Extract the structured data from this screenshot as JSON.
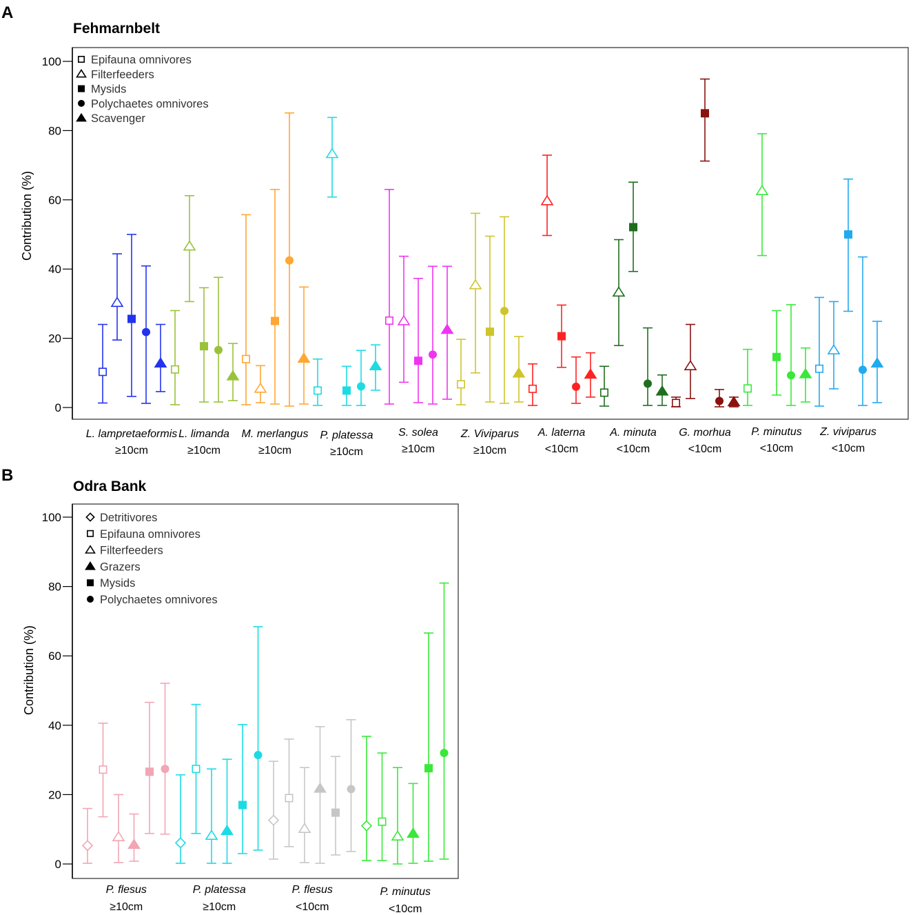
{
  "chart_data": [
    {
      "type": "scatter",
      "panel_letter": "A",
      "title": "Fehmarnbelt",
      "ylabel": "Contribution (%)",
      "xlabel": "",
      "ylim": [
        0,
        100
      ],
      "yticks": [
        "0",
        "20",
        "40",
        "60",
        "80",
        "100"
      ],
      "legend_position": "top-left",
      "legend": [
        {
          "name": "Epifauna omnivores",
          "marker": "square-open"
        },
        {
          "name": "Filterfeeders",
          "marker": "triangle-open"
        },
        {
          "name": "Mysids",
          "marker": "square-filled"
        },
        {
          "name": "Polychaetes omnivores",
          "marker": "circle-filled"
        },
        {
          "name": "Scavenger",
          "marker": "triangle-filled"
        }
      ],
      "categories": [
        {
          "name": "L. lampretaeformis",
          "size": "≥10cm",
          "color": "#2233ee",
          "points": [
            {
              "group": "Epifauna omnivores",
              "marker": "square-open",
              "value": 10.3,
              "low": 1.3,
              "high": 24.0
            },
            {
              "group": "Filterfeeders",
              "marker": "triangle-open",
              "value": 30.3,
              "low": 19.5,
              "high": 44.4
            },
            {
              "group": "Mysids",
              "marker": "square-filled",
              "value": 25.6,
              "low": 3.2,
              "high": 50.0
            },
            {
              "group": "Polychaetes omnivores",
              "marker": "circle-filled",
              "value": 21.8,
              "low": 1.2,
              "high": 40.9
            },
            {
              "group": "Scavenger",
              "marker": "triangle-filled",
              "value": 12.8,
              "low": 4.6,
              "high": 24.0
            }
          ]
        },
        {
          "name": "L. limanda",
          "size": "≥10cm",
          "color": "#99c23a",
          "points": [
            {
              "group": "Epifauna omnivores",
              "marker": "square-open",
              "value": 11.0,
              "low": 0.8,
              "high": 28.0
            },
            {
              "group": "Filterfeeders",
              "marker": "triangle-open",
              "value": 46.6,
              "low": 30.6,
              "high": 61.2
            },
            {
              "group": "Mysids",
              "marker": "square-filled",
              "value": 17.7,
              "low": 1.6,
              "high": 34.6
            },
            {
              "group": "Polychaetes omnivores",
              "marker": "circle-filled",
              "value": 16.6,
              "low": 1.6,
              "high": 37.6
            },
            {
              "group": "Scavenger",
              "marker": "triangle-filled",
              "value": 9.1,
              "low": 2.0,
              "high": 18.5
            }
          ]
        },
        {
          "name": "M. merlangus",
          "size": "≥10cm",
          "color": "#ffa733",
          "points": [
            {
              "group": "Epifauna omnivores",
              "marker": "square-open",
              "value": 14.0,
              "low": 0.8,
              "high": 55.7
            },
            {
              "group": "Filterfeeders",
              "marker": "triangle-open",
              "value": 5.5,
              "low": 1.4,
              "high": 12.1
            },
            {
              "group": "Mysids",
              "marker": "square-filled",
              "value": 25.0,
              "low": 1.0,
              "high": 63.0
            },
            {
              "group": "Polychaetes omnivores",
              "marker": "circle-filled",
              "value": 42.5,
              "low": 0.4,
              "high": 85.1
            },
            {
              "group": "Scavenger",
              "marker": "triangle-filled",
              "value": 14.2,
              "low": 1.0,
              "high": 34.8
            }
          ]
        },
        {
          "name": "P. platessa",
          "size": "≥10cm",
          "color": "#1ddbe3",
          "points": [
            {
              "group": "Epifauna omnivores",
              "marker": "square-open",
              "value": 4.9,
              "low": 0.6,
              "high": 14.0
            },
            {
              "group": "Filterfeeders",
              "marker": "triangle-open",
              "value": 73.3,
              "low": 60.8,
              "high": 83.8
            },
            {
              "group": "Mysids",
              "marker": "square-filled",
              "value": 4.9,
              "low": 0.6,
              "high": 11.9
            },
            {
              "group": "Polychaetes omnivores",
              "marker": "circle-filled",
              "value": 6.1,
              "low": 0.6,
              "high": 16.5
            },
            {
              "group": "Scavenger",
              "marker": "triangle-filled",
              "value": 12.0,
              "low": 5.0,
              "high": 18.1
            }
          ]
        },
        {
          "name": "S. solea",
          "size": "≥10cm",
          "color": "#f035f0",
          "points": [
            {
              "group": "Epifauna omnivores",
              "marker": "square-open",
              "value": 25.1,
              "low": 1.0,
              "high": 63.0
            },
            {
              "group": "Filterfeeders",
              "marker": "triangle-open",
              "value": 25.0,
              "low": 7.3,
              "high": 43.7
            },
            {
              "group": "Mysids",
              "marker": "square-filled",
              "value": 13.5,
              "low": 1.4,
              "high": 37.3
            },
            {
              "group": "Polychaetes omnivores",
              "marker": "circle-filled",
              "value": 15.3,
              "low": 1.0,
              "high": 40.8
            },
            {
              "group": "Scavenger",
              "marker": "triangle-filled",
              "value": 22.5,
              "low": 2.4,
              "high": 40.8
            }
          ]
        },
        {
          "name": "Z. Viviparus",
          "size": "≥10cm",
          "color": "#cfc42a",
          "points": [
            {
              "group": "Epifauna omnivores",
              "marker": "square-open",
              "value": 6.7,
              "low": 0.8,
              "high": 19.7
            },
            {
              "group": "Filterfeeders",
              "marker": "triangle-open",
              "value": 35.4,
              "low": 10.0,
              "high": 56.1
            },
            {
              "group": "Mysids",
              "marker": "square-filled",
              "value": 21.9,
              "low": 1.6,
              "high": 49.5
            },
            {
              "group": "Polychaetes omnivores",
              "marker": "circle-filled",
              "value": 27.9,
              "low": 1.2,
              "high": 55.1
            },
            {
              "group": "Scavenger",
              "marker": "triangle-filled",
              "value": 9.9,
              "low": 1.6,
              "high": 20.5
            }
          ]
        },
        {
          "name": "A. laterna",
          "size": "<10cm",
          "color": "#ff2222",
          "points": [
            {
              "group": "Epifauna omnivores",
              "marker": "square-open",
              "value": 5.4,
              "low": 0.6,
              "high": 12.6
            },
            {
              "group": "Filterfeeders",
              "marker": "triangle-open",
              "value": 59.7,
              "low": 49.7,
              "high": 72.9
            },
            {
              "group": "Mysids",
              "marker": "square-filled",
              "value": 20.6,
              "low": 11.6,
              "high": 29.6
            },
            {
              "group": "Polychaetes omnivores",
              "marker": "circle-filled",
              "value": 6.0,
              "low": 1.2,
              "high": 14.6
            },
            {
              "group": "Scavenger",
              "marker": "triangle-filled",
              "value": 9.6,
              "low": 3.0,
              "high": 15.8
            }
          ]
        },
        {
          "name": "A. minuta",
          "size": "<10cm",
          "color": "#1f6e1f",
          "points": [
            {
              "group": "Epifauna omnivores",
              "marker": "square-open",
              "value": 4.3,
              "low": 0.4,
              "high": 11.9
            },
            {
              "group": "Filterfeeders",
              "marker": "triangle-open",
              "value": 33.3,
              "low": 17.9,
              "high": 48.5
            },
            {
              "group": "Mysids",
              "marker": "square-filled",
              "value": 52.1,
              "low": 39.3,
              "high": 65.1
            },
            {
              "group": "Polychaetes omnivores",
              "marker": "circle-filled",
              "value": 6.9,
              "low": 0.6,
              "high": 23.0
            },
            {
              "group": "Scavenger",
              "marker": "triangle-filled",
              "value": 4.7,
              "low": 0.6,
              "high": 9.4
            }
          ]
        },
        {
          "name": "G. morhua",
          "size": "<10cm",
          "color": "#8b1010",
          "points": [
            {
              "group": "Epifauna omnivores",
              "marker": "square-open",
              "value": 1.3,
              "low": 0.2,
              "high": 3.0
            },
            {
              "group": "Filterfeeders",
              "marker": "triangle-open",
              "value": 12.0,
              "low": 2.6,
              "high": 24.0
            },
            {
              "group": "Mysids",
              "marker": "square-filled",
              "value": 85.0,
              "low": 71.2,
              "high": 94.9
            },
            {
              "group": "Polychaetes omnivores",
              "marker": "circle-filled",
              "value": 1.9,
              "low": 0.2,
              "high": 5.2
            },
            {
              "group": "Scavenger",
              "marker": "triangle-filled",
              "value": 1.6,
              "low": 0.2,
              "high": 3.0
            }
          ]
        },
        {
          "name": "P. minutus",
          "size": "<10cm",
          "color": "#3ae83a",
          "points": [
            {
              "group": "Epifauna omnivores",
              "marker": "square-open",
              "value": 5.5,
              "low": 0.6,
              "high": 16.8
            },
            {
              "group": "Filterfeeders",
              "marker": "triangle-open",
              "value": 62.6,
              "low": 43.9,
              "high": 79.1
            },
            {
              "group": "Mysids",
              "marker": "square-filled",
              "value": 14.6,
              "low": 3.6,
              "high": 28.0
            },
            {
              "group": "Polychaetes omnivores",
              "marker": "circle-filled",
              "value": 9.3,
              "low": 0.6,
              "high": 29.7
            },
            {
              "group": "Scavenger",
              "marker": "triangle-filled",
              "value": 9.7,
              "low": 1.6,
              "high": 17.2
            }
          ]
        },
        {
          "name": "Z. viviparus",
          "size": "<10cm",
          "color": "#22aaee",
          "points": [
            {
              "group": "Epifauna omnivores",
              "marker": "square-open",
              "value": 11.2,
              "low": 0.4,
              "high": 31.8
            },
            {
              "group": "Filterfeeders",
              "marker": "triangle-open",
              "value": 16.6,
              "low": 5.4,
              "high": 30.6
            },
            {
              "group": "Mysids",
              "marker": "square-filled",
              "value": 50.0,
              "low": 27.8,
              "high": 66.0
            },
            {
              "group": "Polychaetes omnivores",
              "marker": "circle-filled",
              "value": 10.9,
              "low": 0.6,
              "high": 43.5
            },
            {
              "group": "Scavenger",
              "marker": "triangle-filled",
              "value": 12.8,
              "low": 1.4,
              "high": 24.9
            }
          ]
        }
      ]
    },
    {
      "type": "scatter",
      "panel_letter": "B",
      "title": "Odra Bank",
      "ylabel": "Contribution (%)",
      "xlabel": "",
      "ylim": [
        0,
        100
      ],
      "yticks": [
        "0",
        "20",
        "40",
        "60",
        "80",
        "100"
      ],
      "legend_position": "top-left",
      "legend": [
        {
          "name": "Detritivores",
          "marker": "diamond-open"
        },
        {
          "name": "Epifauna omnivores",
          "marker": "square-open"
        },
        {
          "name": "Filterfeeders",
          "marker": "triangle-open"
        },
        {
          "name": "Grazers",
          "marker": "triangle-filled"
        },
        {
          "name": "Mysids",
          "marker": "square-filled"
        },
        {
          "name": "Polychaetes omnivores",
          "marker": "circle-filled"
        }
      ],
      "categories": [
        {
          "name": "P. flesus",
          "size": "≥10cm",
          "color": "#f0a6b4",
          "points": [
            {
              "group": "Detritivores",
              "marker": "diamond-open",
              "value": 5.3,
              "low": 0.2,
              "high": 16.0
            },
            {
              "group": "Epifauna omnivores",
              "marker": "square-open",
              "value": 27.2,
              "low": 13.6,
              "high": 40.6
            },
            {
              "group": "Filterfeeders",
              "marker": "triangle-open",
              "value": 7.8,
              "low": 0.4,
              "high": 20.0
            },
            {
              "group": "Grazers",
              "marker": "triangle-filled",
              "value": 5.6,
              "low": 0.8,
              "high": 14.4
            },
            {
              "group": "Mysids",
              "marker": "square-filled",
              "value": 26.6,
              "low": 8.8,
              "high": 46.6
            },
            {
              "group": "Polychaetes omnivores",
              "marker": "circle-filled",
              "value": 27.4,
              "low": 8.6,
              "high": 52.1
            }
          ]
        },
        {
          "name": "P. platessa",
          "size": "≥10cm",
          "color": "#1ddbe3",
          "points": [
            {
              "group": "Detritivores",
              "marker": "diamond-open",
              "value": 6.1,
              "low": 0.2,
              "high": 25.7
            },
            {
              "group": "Epifauna omnivores",
              "marker": "square-open",
              "value": 27.4,
              "low": 8.8,
              "high": 46.0
            },
            {
              "group": "Filterfeeders",
              "marker": "triangle-open",
              "value": 8.2,
              "low": 0.2,
              "high": 27.4
            },
            {
              "group": "Grazers",
              "marker": "triangle-filled",
              "value": 9.6,
              "low": 0.2,
              "high": 30.2
            },
            {
              "group": "Mysids",
              "marker": "square-filled",
              "value": 17.0,
              "low": 3.0,
              "high": 40.2
            },
            {
              "group": "Polychaetes omnivores",
              "marker": "circle-filled",
              "value": 31.4,
              "low": 4.0,
              "high": 68.4
            }
          ]
        },
        {
          "name": "P. flesus",
          "size": "<10cm",
          "color": "#c6c6c6",
          "points": [
            {
              "group": "Detritivores",
              "marker": "diamond-open",
              "value": 12.6,
              "low": 1.4,
              "high": 29.6
            },
            {
              "group": "Epifauna omnivores",
              "marker": "square-open",
              "value": 19.0,
              "low": 5.0,
              "high": 36.0
            },
            {
              "group": "Filterfeeders",
              "marker": "triangle-open",
              "value": 10.2,
              "low": 0.4,
              "high": 27.8
            },
            {
              "group": "Grazers",
              "marker": "triangle-filled",
              "value": 21.8,
              "low": 0.2,
              "high": 39.6
            },
            {
              "group": "Mysids",
              "marker": "square-filled",
              "value": 14.8,
              "low": 2.6,
              "high": 31.0
            },
            {
              "group": "Polychaetes omnivores",
              "marker": "circle-filled",
              "value": 21.6,
              "low": 3.6,
              "high": 41.6
            }
          ]
        },
        {
          "name": "P. minutus",
          "size": "<10cm",
          "color": "#3ae83a",
          "points": [
            {
              "group": "Detritivores",
              "marker": "diamond-open",
              "value": 11.0,
              "low": 1.0,
              "high": 36.8
            },
            {
              "group": "Epifauna omnivores",
              "marker": "square-open",
              "value": 12.2,
              "low": 1.0,
              "high": 32.0
            },
            {
              "group": "Filterfeeders",
              "marker": "triangle-open",
              "value": 8.0,
              "low": 0.0,
              "high": 27.8
            },
            {
              "group": "Grazers",
              "marker": "triangle-filled",
              "value": 8.8,
              "low": 0.2,
              "high": 23.2
            },
            {
              "group": "Mysids",
              "marker": "square-filled",
              "value": 27.6,
              "low": 0.8,
              "high": 66.6
            },
            {
              "group": "Polychaetes omnivores",
              "marker": "circle-filled",
              "value": 32.0,
              "low": 1.4,
              "high": 81.0
            }
          ]
        }
      ]
    }
  ]
}
